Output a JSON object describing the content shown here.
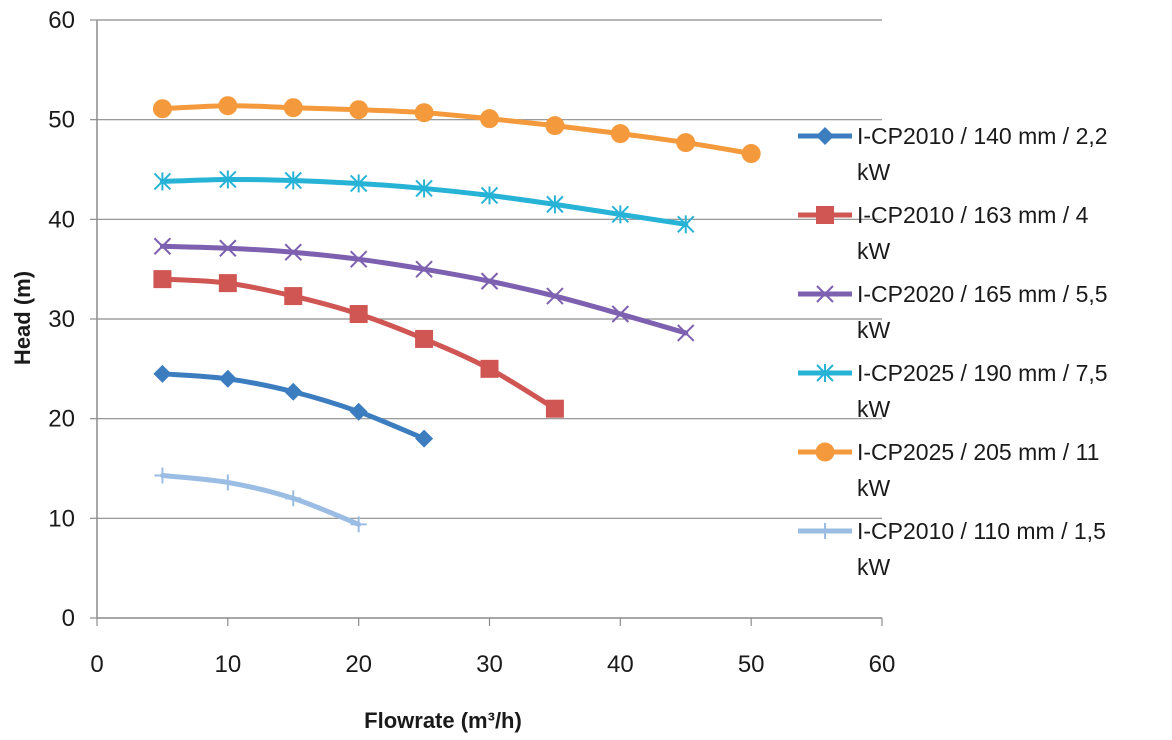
{
  "chart_data": {
    "type": "line",
    "title": "",
    "xlabel": "Flowrate (m³/h)",
    "ylabel": "Head (m)",
    "xlim": [
      0,
      60
    ],
    "ylim": [
      0,
      60
    ],
    "x_ticks": [
      0,
      10,
      20,
      30,
      40,
      50,
      60
    ],
    "y_ticks": [
      0,
      10,
      20,
      30,
      40,
      50,
      60
    ],
    "grid": "horizontal",
    "legend_position": "right",
    "series": [
      {
        "name": "I-CP2010 / 140 mm / 2,2 kW",
        "legend_lines": [
          "I-CP2010 / 140 mm / 2,2",
          "kW"
        ],
        "color": "#3c7dbf",
        "marker": "diamond",
        "x": [
          5,
          10,
          15,
          20,
          25
        ],
        "y": [
          24.5,
          24.0,
          22.7,
          20.7,
          18.0
        ]
      },
      {
        "name": "I-CP2010 / 163 mm / 4 kW",
        "legend_lines": [
          "I-CP2010 / 163 mm / 4",
          "kW"
        ],
        "color": "#d05653",
        "marker": "square",
        "x": [
          5,
          10,
          15,
          20,
          25,
          30,
          35
        ],
        "y": [
          34.0,
          33.6,
          32.3,
          30.5,
          28.0,
          25.0,
          21.0
        ]
      },
      {
        "name": "I-CP2020 / 165 mm / 5,5 kW",
        "legend_lines": [
          "I-CP2020 / 165 mm / 5,5",
          "kW"
        ],
        "color": "#7d61b0",
        "marker": "x",
        "x": [
          5,
          10,
          15,
          20,
          25,
          30,
          35,
          40,
          45
        ],
        "y": [
          37.3,
          37.1,
          36.7,
          36.0,
          35.0,
          33.8,
          32.3,
          30.5,
          28.6
        ]
      },
      {
        "name": "I-CP2025 / 190 mm / 7,5 kW",
        "legend_lines": [
          "I-CP2025 / 190 mm / 7,5",
          "kW"
        ],
        "color": "#27b3d6",
        "marker": "asterisk",
        "x": [
          5,
          10,
          15,
          20,
          25,
          30,
          35,
          40,
          45
        ],
        "y": [
          43.8,
          44.0,
          43.9,
          43.6,
          43.1,
          42.4,
          41.5,
          40.5,
          39.5
        ]
      },
      {
        "name": "I-CP2025 / 205 mm / 11 kW",
        "legend_lines": [
          "I-CP2025 / 205 mm / 11",
          "kW"
        ],
        "color": "#f49a3c",
        "marker": "circle",
        "x": [
          5,
          10,
          15,
          20,
          25,
          30,
          35,
          40,
          45,
          50
        ],
        "y": [
          51.1,
          51.4,
          51.2,
          51.0,
          50.7,
          50.1,
          49.4,
          48.6,
          47.7,
          46.6
        ]
      },
      {
        "name": "I-CP2010 / 110 mm / 1,5 kW",
        "legend_lines": [
          "I-CP2010 / 110 mm / 1,5",
          "kW"
        ],
        "color": "#9bbde3",
        "marker": "plus",
        "x": [
          5,
          10,
          15,
          20
        ],
        "y": [
          14.3,
          13.6,
          12.0,
          9.4
        ]
      }
    ]
  }
}
